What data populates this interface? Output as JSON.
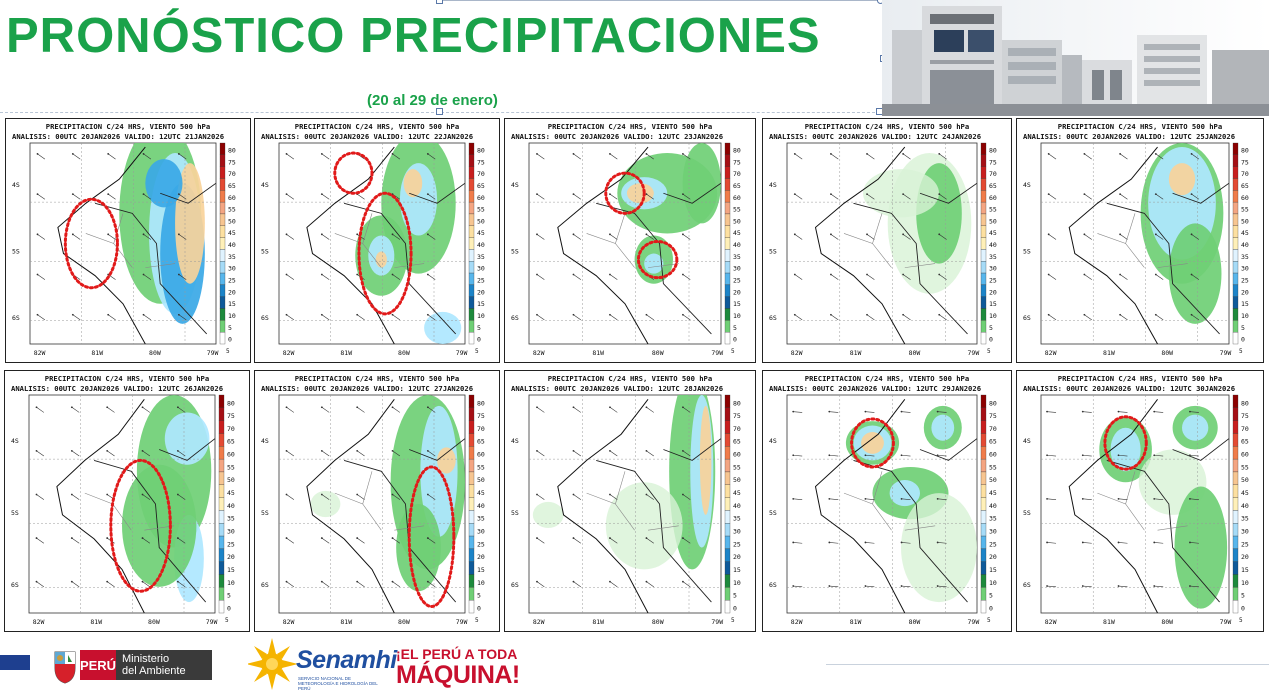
{
  "header": {
    "title": "PRONÓSTICO PRECIPITACIONES",
    "subtitle": "(20 al 29 de enero)"
  },
  "colors": {
    "title_green": "#1aa24a",
    "rain_light_green": "#d8f2d6",
    "rain_green": "#6fcf75",
    "rain_dark_green": "#1d8a3c",
    "rain_light_blue": "#aee7ff",
    "rain_blue": "#3aa8e6",
    "rain_orange": "#f8d29a",
    "highlight_red": "#e11a1a"
  },
  "maps": {
    "panel_title": "PRECIPITACION C/24 HRS, VIENTO 500 hPa",
    "lon_labels": [
      "82W",
      "81W",
      "80W",
      "79W"
    ],
    "lat_labels": [
      "4S",
      "5S",
      "6S"
    ],
    "legend_values": [
      "80",
      "75",
      "70",
      "65",
      "60",
      "55",
      "50",
      "45",
      "40",
      "35",
      "30",
      "25",
      "20",
      "15",
      "10",
      "5",
      "0"
    ],
    "legend_unit": "5",
    "panels": [
      {
        "subtitle": "ANALISIS: 00UTC 20JAN2026  VALIDO: 12UTC 21JAN2026",
        "icon": "precip-map-21jan-icon"
      },
      {
        "subtitle": "ANALISIS: 00UTC 20JAN2026  VALIDO: 12UTC 22JAN2026",
        "icon": "precip-map-22jan-icon"
      },
      {
        "subtitle": "ANALISIS: 00UTC 20JAN2026  VALIDO: 12UTC 23JAN2026",
        "icon": "precip-map-23jan-icon"
      },
      {
        "subtitle": "ANALISIS: 00UTC 20JAN2026  VALIDO: 12UTC 24JAN2026",
        "icon": "precip-map-24jan-icon"
      },
      {
        "subtitle": "ANALISIS: 00UTC 20JAN2026  VALIDO: 12UTC 25JAN2026",
        "icon": "precip-map-25jan-icon"
      },
      {
        "subtitle": "ANALISIS: 00UTC 20JAN2026  VALIDO: 12UTC 26JAN2026",
        "icon": "precip-map-26jan-icon"
      },
      {
        "subtitle": "ANALISIS: 00UTC 20JAN2026  VALIDO: 12UTC 27JAN2026",
        "icon": "precip-map-27jan-icon"
      },
      {
        "subtitle": "ANALISIS: 00UTC 20JAN2026  VALIDO: 12UTC 28JAN2026",
        "icon": "precip-map-28jan-icon"
      },
      {
        "subtitle": "ANALISIS: 00UTC 20JAN2026  VALIDO: 12UTC 29JAN2026",
        "icon": "precip-map-29jan-icon"
      },
      {
        "subtitle": "ANALISIS: 00UTC 20JAN2026  VALIDO: 12UTC 30JAN2026",
        "icon": "precip-map-30jan-icon"
      }
    ]
  },
  "footer": {
    "peru_label": "PERÚ",
    "ministry_line1": "Ministerio",
    "ministry_line2": "del Ambiente",
    "senamhi_name": "Senamhi",
    "senamhi_desc": "SERVICIO NACIONAL DE METEOROLOGÍA E HIDROLOGÍA DEL PERÚ",
    "slogan_line1": "¡EL PERÚ A TODA",
    "slogan_line2": "MÁQUINA!"
  }
}
